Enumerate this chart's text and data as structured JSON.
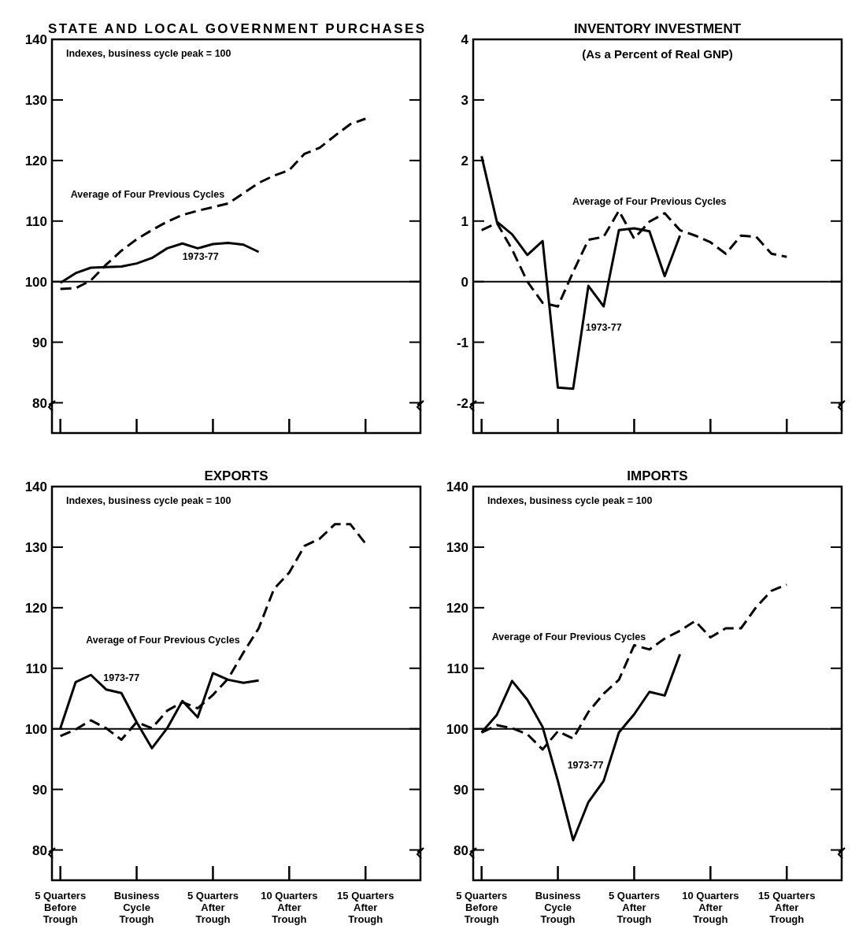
{
  "chart_data": [
    {
      "type": "line",
      "title": "STATE AND LOCAL GOVERNMENT PURCHASES",
      "annotations": [
        "Indexes, business cycle peak = 100"
      ],
      "xlim": [
        -5.55,
        18.6
      ],
      "xticks": [
        {
          "value": -5,
          "label": "5 Quarters\nBefore\nTrough"
        },
        {
          "value": 0,
          "label": "Business\nCycle\nTrough"
        },
        {
          "value": 5,
          "label": "5 Quarters\nAfter\nTrough"
        },
        {
          "value": 10,
          "label": "10 Quarters\nAfter\nTrough"
        },
        {
          "value": 15,
          "label": "15 Quarters\nAfter\nTrough"
        }
      ],
      "ylim": [
        75,
        140
      ],
      "yticks": [
        80,
        90,
        100,
        110,
        120,
        130,
        140
      ],
      "tick_labels": "y",
      "legend": false,
      "ref_lines": [
        {
          "axis": "y",
          "value": 100,
          "label": null
        }
      ],
      "series": [
        {
          "name": "Average of Four Previous Cycles",
          "color": "#000000",
          "line_style": "dashed",
          "x": [
            -5,
            -4,
            -3,
            -2,
            -1,
            0,
            1,
            2,
            3,
            4,
            5,
            6,
            7,
            8,
            9,
            10,
            11,
            12,
            13,
            14,
            15
          ],
          "values": [
            98.8,
            98.9,
            100.2,
            102.8,
            105.1,
            107,
            108.5,
            109.9,
            111,
            111.7,
            112.3,
            112.9,
            114.6,
            116.3,
            117.5,
            118.4,
            121.1,
            122.1,
            124.1,
            126,
            126.9
          ]
        },
        {
          "name": "1973-77",
          "color": "#000000",
          "line_style": "solid",
          "x": [
            -5,
            -4,
            -3,
            -2,
            -1,
            0,
            1,
            2,
            3,
            4,
            5,
            6,
            7,
            8
          ],
          "values": [
            99.8,
            101.4,
            102.3,
            102.4,
            102.5,
            103,
            103.9,
            105.5,
            106.3,
            105.5,
            106.2,
            106.4,
            106.1,
            104.9
          ]
        }
      ]
    },
    {
      "type": "line",
      "title": "INVENTORY INVESTMENT",
      "subtitle": "(As a Percent of Real GNP)",
      "xlim": [
        -5.55,
        18.6
      ],
      "xticks": [
        {
          "value": -5,
          "label": "5 Quarters\nBefore\nTrough"
        },
        {
          "value": 0,
          "label": "Business\nCycle\nTrough"
        },
        {
          "value": 5,
          "label": "5 Quarters\nAfter\nTrough"
        },
        {
          "value": 10,
          "label": "10 Quarters\nAfter\nTrough"
        },
        {
          "value": 15,
          "label": "15 Quarters\nAfter\nTrough"
        }
      ],
      "ylim": [
        -2.5,
        4
      ],
      "yticks": [
        {
          "value": -2,
          "label": "-2"
        },
        {
          "value": -1,
          "label": "-1"
        },
        0,
        1,
        2,
        3,
        4
      ],
      "tick_labels": "y",
      "legend": false,
      "ref_lines": [
        {
          "axis": "y",
          "value": 0,
          "label": null
        }
      ],
      "series": [
        {
          "name": "Average of Four Previous Cycles",
          "color": "#000000",
          "line_style": "dashed",
          "x": [
            -5,
            -4,
            -3,
            -2,
            -1,
            0,
            1,
            2,
            3,
            4,
            5,
            6,
            7,
            8,
            9,
            10,
            11,
            12,
            13,
            14,
            15
          ],
          "values": [
            0.85,
            0.97,
            0.53,
            0,
            -0.35,
            -0.41,
            0.16,
            0.69,
            0.74,
            1.17,
            0.71,
            0.99,
            1.13,
            0.85,
            0.76,
            0.65,
            0.46,
            0.76,
            0.74,
            0.46,
            0.41
          ]
        },
        {
          "name": "1973-77",
          "color": "#000000",
          "line_style": "solid",
          "x": [
            -5,
            -4,
            -3,
            -2,
            -1,
            0,
            1,
            2,
            3,
            4,
            5,
            6,
            7,
            8
          ],
          "values": [
            2.07,
            0.99,
            0.78,
            0.44,
            0.67,
            -1.75,
            -1.77,
            -0.07,
            -0.41,
            0.85,
            0.88,
            0.83,
            0.09,
            0.76
          ]
        }
      ]
    },
    {
      "type": "line",
      "title": "EXPORTS",
      "annotations": [
        "Indexes, business cycle peak = 100"
      ],
      "xlim": [
        -5.55,
        18.6
      ],
      "xticks": [
        {
          "value": -5,
          "label": "5 Quarters\nBefore\nTrough"
        },
        {
          "value": 0,
          "label": "Business\nCycle\nTrough"
        },
        {
          "value": 5,
          "label": "5 Quarters\nAfter\nTrough"
        },
        {
          "value": 10,
          "label": "10 Quarters\nAfter\nTrough"
        },
        {
          "value": 15,
          "label": "15 Quarters\nAfter\nTrough"
        }
      ],
      "ylim": [
        75,
        140
      ],
      "yticks": [
        80,
        90,
        100,
        110,
        120,
        130,
        140
      ],
      "legend": false,
      "ref_lines": [
        {
          "axis": "y",
          "value": 100,
          "label": null
        }
      ],
      "series": [
        {
          "name": "Average of Four Previous Cycles",
          "color": "#000000",
          "line_style": "dashed",
          "x": [
            -5,
            -4,
            -3,
            -2,
            -1,
            0,
            1,
            2,
            3,
            4,
            5,
            6,
            7,
            8,
            9,
            10,
            11,
            12,
            13,
            14,
            15
          ],
          "values": [
            98.8,
            99.9,
            101.4,
            100.1,
            98.2,
            101.1,
            100.1,
            103,
            104.4,
            103.4,
            105.6,
            108.3,
            112.6,
            116.6,
            123.1,
            125.8,
            130.2,
            131.4,
            133.8,
            133.8,
            130.6
          ]
        },
        {
          "name": "1973-77",
          "color": "#000000",
          "line_style": "solid",
          "x": [
            -5,
            -4,
            -3,
            -2,
            -1,
            0,
            1,
            2,
            3,
            4,
            5,
            6,
            7,
            8
          ],
          "values": [
            100.1,
            107.7,
            108.9,
            106.5,
            105.9,
            101.1,
            96.8,
            100.1,
            104.6,
            101.9,
            109.2,
            108.1,
            107.6,
            108
          ]
        }
      ]
    },
    {
      "type": "line",
      "title": "IMPORTS",
      "annotations": [
        "Indexes, business cycle peak = 100"
      ],
      "xlim": [
        -5.55,
        18.6
      ],
      "xticks": [
        {
          "value": -5,
          "label": "5 Quarters\nBefore\nTrough"
        },
        {
          "value": 0,
          "label": "Business\nCycle\nTrough"
        },
        {
          "value": 5,
          "label": "5 Quarters\nAfter\nTrough"
        },
        {
          "value": 10,
          "label": "10 Quarters\nAfter\nTrough"
        },
        {
          "value": 15,
          "label": "15 Quarters\nAfter\nTrough"
        }
      ],
      "ylim": [
        75,
        140
      ],
      "yticks": [
        80,
        90,
        100,
        110,
        120,
        130,
        140
      ],
      "legend": false,
      "ref_lines": [
        {
          "axis": "y",
          "value": 100,
          "label": null
        }
      ],
      "series": [
        {
          "name": "Average of Four Previous Cycles",
          "color": "#000000",
          "line_style": "dashed",
          "x": [
            -5,
            -4,
            -3,
            -2,
            -1,
            0,
            1,
            2,
            3,
            4,
            5,
            6,
            7,
            8,
            9,
            10,
            11,
            12,
            13,
            14,
            15
          ],
          "values": [
            99.4,
            100.6,
            100.1,
            99.1,
            96.6,
            99.6,
            98.4,
            102.8,
            105.8,
            108.1,
            113.8,
            113.1,
            114.9,
            116.2,
            117.8,
            115.1,
            116.6,
            116.6,
            120.1,
            122.8,
            123.8
          ]
        },
        {
          "name": "1973-77",
          "color": "#000000",
          "line_style": "solid",
          "x": [
            -5,
            -4,
            -3,
            -2,
            -1,
            0,
            1,
            2,
            3,
            4,
            5,
            6,
            7,
            8
          ],
          "values": [
            99.4,
            102.3,
            107.9,
            104.8,
            100.3,
            91.4,
            81.6,
            87.9,
            91.4,
            99.4,
            102.4,
            106.1,
            105.5,
            112.3
          ]
        }
      ]
    }
  ]
}
